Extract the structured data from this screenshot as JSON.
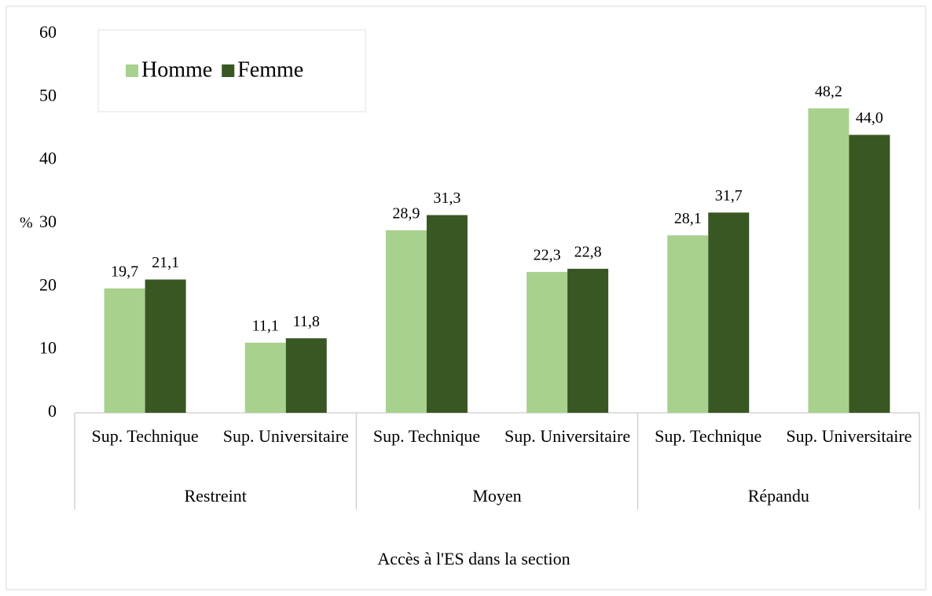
{
  "chart_data": {
    "type": "bar",
    "y_label": "%",
    "x_label": "Accès à l'ES dans la section",
    "categories": [
      "Sup. Technique",
      "Sup. Universitaire",
      "Sup. Technique",
      "Sup. Universitaire",
      "Sup. Technique",
      "Sup. Universitaire"
    ],
    "groups": [
      "Restreint",
      "Moyen",
      "Répandu"
    ],
    "series": [
      {
        "name": "Homme",
        "color": "#a9d18e",
        "values": [
          19.7,
          11.1,
          28.9,
          22.3,
          28.1,
          48.2
        ],
        "value_labels": [
          "19,7",
          "11,1",
          "28,9",
          "22,3",
          "28,1",
          "48,2"
        ]
      },
      {
        "name": "Femme",
        "color": "#385723",
        "values": [
          21.1,
          11.8,
          31.3,
          22.8,
          31.7,
          44.0
        ],
        "value_labels": [
          "21,1",
          "11,8",
          "31,3",
          "22,8",
          "31,7",
          "44,0"
        ]
      }
    ],
    "ylim": [
      0,
      60
    ],
    "yticks": [
      0,
      10,
      20,
      30,
      40,
      50,
      60
    ],
    "grid": false,
    "legend": "top-left"
  }
}
